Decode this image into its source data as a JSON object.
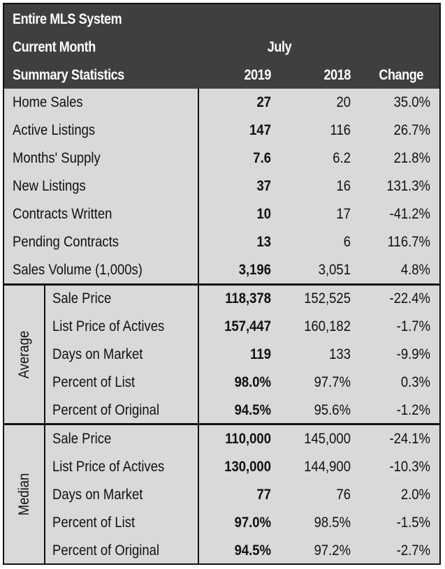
{
  "header": {
    "title": "Entire MLS System",
    "period_label": "Current Month",
    "month": "July",
    "section_label": "Summary Statistics",
    "col_2019": "2019",
    "col_2018": "2018",
    "col_change": "Change"
  },
  "summary_rows": [
    {
      "label": "Home Sales",
      "v2019": "27",
      "v2018": "20",
      "change": "35.0%"
    },
    {
      "label": "Active Listings",
      "v2019": "147",
      "v2018": "116",
      "change": "26.7%"
    },
    {
      "label": "Months' Supply",
      "v2019": "7.6",
      "v2018": "6.2",
      "change": "21.8%"
    },
    {
      "label": "New Listings",
      "v2019": "37",
      "v2018": "16",
      "change": "131.3%"
    },
    {
      "label": "Contracts Written",
      "v2019": "10",
      "v2018": "17",
      "change": "-41.2%"
    },
    {
      "label": "Pending Contracts",
      "v2019": "13",
      "v2018": "6",
      "change": "116.7%"
    },
    {
      "label": "Sales Volume (1,000s)",
      "v2019": "3,196",
      "v2018": "3,051",
      "change": "4.8%"
    }
  ],
  "average": {
    "group_label": "Average",
    "rows": [
      {
        "label": "Sale Price",
        "v2019": "118,378",
        "v2018": "152,525",
        "change": "-22.4%"
      },
      {
        "label": "List Price of Actives",
        "v2019": "157,447",
        "v2018": "160,182",
        "change": "-1.7%"
      },
      {
        "label": "Days on Market",
        "v2019": "119",
        "v2018": "133",
        "change": "-9.9%"
      },
      {
        "label": "Percent of List",
        "v2019": "98.0%",
        "v2018": "97.7%",
        "change": "0.3%"
      },
      {
        "label": "Percent of Original",
        "v2019": "94.5%",
        "v2018": "95.6%",
        "change": "-1.2%"
      }
    ]
  },
  "median": {
    "group_label": "Median",
    "rows": [
      {
        "label": "Sale Price",
        "v2019": "110,000",
        "v2018": "145,000",
        "change": "-24.1%"
      },
      {
        "label": "List Price of Actives",
        "v2019": "130,000",
        "v2018": "144,900",
        "change": "-10.3%"
      },
      {
        "label": "Days on Market",
        "v2019": "77",
        "v2018": "76",
        "change": "2.0%"
      },
      {
        "label": "Percent of List",
        "v2019": "97.0%",
        "v2018": "98.5%",
        "change": "-1.5%"
      },
      {
        "label": "Percent of Original",
        "v2019": "94.5%",
        "v2018": "97.2%",
        "change": "-2.7%"
      }
    ]
  }
}
